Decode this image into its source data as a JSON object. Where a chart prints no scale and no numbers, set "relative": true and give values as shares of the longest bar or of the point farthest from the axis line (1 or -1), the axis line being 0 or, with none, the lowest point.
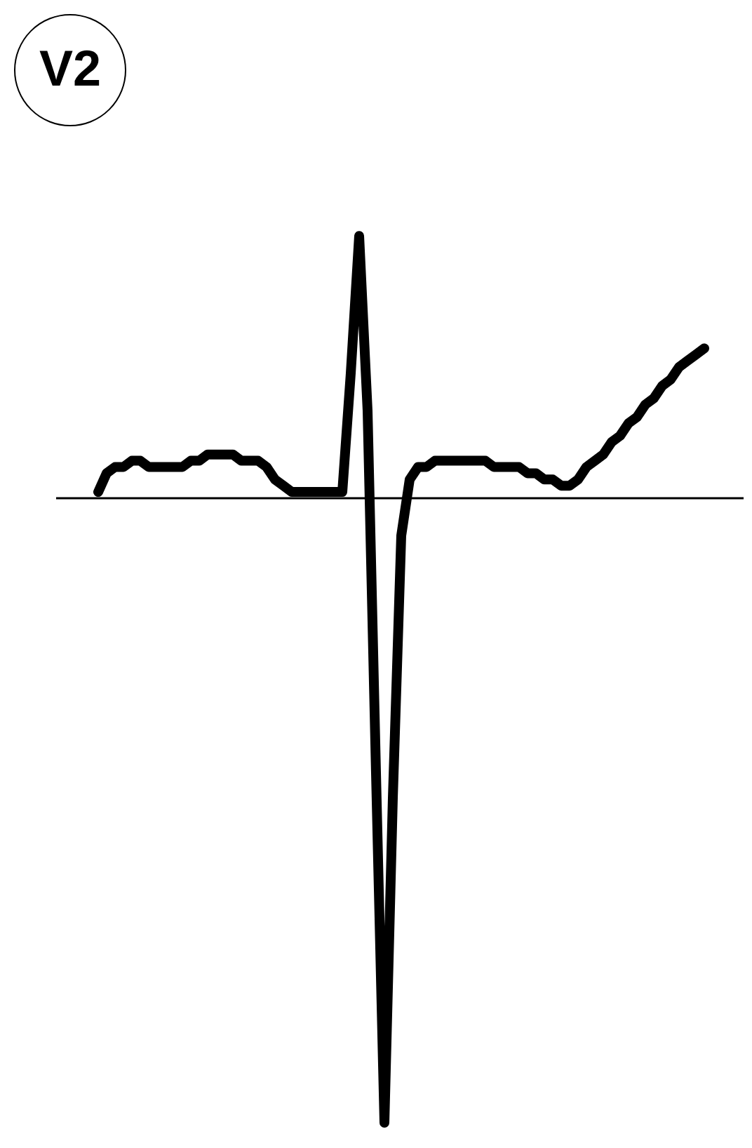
{
  "chart_data": {
    "type": "line",
    "title": "V2",
    "relative": true,
    "categories": [
      null,
      null,
      null,
      null,
      null,
      null,
      null,
      null,
      null,
      null,
      null,
      null,
      null,
      null,
      null,
      null,
      null,
      null,
      null,
      null,
      null,
      null,
      null,
      null,
      null,
      null,
      null,
      null,
      null,
      null,
      null,
      null,
      null,
      null,
      null,
      null,
      null,
      null,
      null,
      null,
      null,
      null,
      null,
      null,
      null,
      null,
      null,
      null,
      null,
      null,
      null,
      null,
      null,
      null,
      null,
      null,
      null,
      null,
      null,
      null,
      null,
      null,
      null,
      null,
      null,
      null,
      null,
      null,
      null,
      null,
      null,
      null,
      null
    ],
    "series": [
      {
        "color": "#000000",
        "values": [
          0.01,
          0.04,
          0.05,
          0.05,
          0.06,
          0.06,
          0.05,
          0.05,
          0.05,
          0.05,
          0.05,
          0.06,
          0.06,
          0.07,
          0.07,
          0.07,
          0.07,
          0.06,
          0.06,
          0.06,
          0.05,
          0.03,
          0.02,
          0.01,
          0.01,
          0.01,
          0.01,
          0.01,
          0.01,
          0.01,
          0.2,
          0.42,
          0.14,
          -0.44,
          -1,
          -0.48,
          -0.06,
          0.03,
          0.05,
          0.05,
          0.06,
          0.06,
          0.06,
          0.06,
          0.06,
          0.06,
          0.06,
          0.05,
          0.05,
          0.05,
          0.05,
          0.04,
          0.04,
          0.03,
          0.03,
          0.02,
          0.02,
          0.03,
          0.05,
          0.06,
          0.07,
          0.09,
          0.1,
          0.12,
          0.13,
          0.15,
          0.16,
          0.18,
          0.19,
          0.21,
          0.22,
          0.23,
          0.24
        ]
      }
    ],
    "marker": "none",
    "line_style": "solid"
  }
}
